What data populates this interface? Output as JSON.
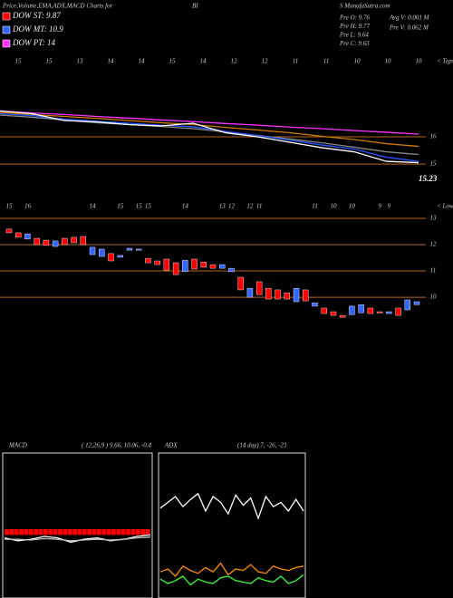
{
  "header": {
    "title": "Price,Volume,EMA,ADX,MACD Charts for",
    "symbol_part1": "BI",
    "symbol_part2": "S MunafaSutra.com"
  },
  "legend": [
    {
      "label": "DOW ST: 9.87",
      "color": "#ff0000"
    },
    {
      "label": "DOW MT: 10.9",
      "color": "#3366ff"
    },
    {
      "label": "DOW PT: 14",
      "color": "#ff33ff"
    }
  ],
  "quote": [
    "Pre  O: 9.76",
    "Pre  H: 9.77",
    "Pre  L: 9.64",
    "Pre  C: 9.63"
  ],
  "volume": [
    "Avg V: 0.001 M",
    "Pre  V: 0.062 M"
  ],
  "chart_data": [
    {
      "type": "line",
      "categories": [
        "15",
        "15",
        "13",
        "14",
        "14",
        "15",
        "14",
        "12",
        "12",
        "11",
        "11",
        "10",
        "10",
        "10"
      ],
      "corner_label": "< Tops",
      "last_price": "15.23",
      "ylim": [
        13.87,
        17.2
      ],
      "yticks": [
        16,
        15
      ],
      "grid": true,
      "grid_color": "#b5651d",
      "series": [
        {
          "color": "#ff33ff",
          "values": [
            16.95,
            16.88,
            16.82,
            16.75,
            16.69,
            16.62,
            16.56,
            16.49,
            16.43,
            16.36,
            16.3,
            16.23,
            16.17,
            16.1
          ]
        },
        {
          "color": "#cc7a00",
          "values": [
            16.9,
            16.82,
            16.75,
            16.68,
            16.6,
            16.52,
            16.45,
            16.35,
            16.25,
            16.15,
            16.02,
            15.9,
            15.75,
            15.65
          ]
        },
        {
          "color": "#888888",
          "values": [
            16.8,
            16.72,
            16.62,
            16.52,
            16.45,
            16.38,
            16.3,
            16.18,
            16.05,
            15.92,
            15.78,
            15.62,
            15.45,
            15.35
          ]
        },
        {
          "color": "#2255ff",
          "values": [
            16.85,
            16.78,
            16.65,
            16.57,
            16.5,
            16.43,
            16.37,
            16.2,
            16.05,
            15.88,
            15.7,
            15.55,
            15.25,
            15.1
          ]
        },
        {
          "color": "#ffffff",
          "values": [
            16.95,
            16.85,
            16.6,
            16.55,
            16.45,
            16.4,
            16.5,
            16.15,
            16.0,
            15.8,
            15.6,
            15.45,
            15.1,
            15.05
          ]
        }
      ]
    },
    {
      "type": "candlestick",
      "categories": [
        "15",
        null,
        "16",
        null,
        null,
        null,
        null,
        null,
        null,
        "14",
        null,
        null,
        "15",
        null,
        "15",
        "15",
        null,
        null,
        null,
        "14",
        null,
        null,
        null,
        "13",
        "12",
        null,
        "12",
        "11",
        null,
        null,
        null,
        null,
        null,
        "11",
        null,
        "10",
        null,
        "10",
        null,
        null,
        "9",
        "9",
        null,
        null,
        null
      ],
      "corner_label": "< Lower",
      "ylim": [
        8.9,
        13.55
      ],
      "yticks": [
        13,
        12,
        11,
        10
      ],
      "grid": true,
      "grid_color": "#b5651d",
      "up_color": "#3366ff",
      "down_color": "#ff0000",
      "open": [
        12.59,
        12.45,
        12.21,
        12.24,
        12.17,
        11.93,
        12.24,
        12.28,
        12.31,
        11.62,
        11.55,
        11.66,
        11.52,
        11.79,
        11.79,
        11.48,
        11.38,
        11.45,
        11.31,
        10.97,
        11.45,
        11.34,
        11.24,
        11.1,
        10.97,
        10.76,
        10.0,
        10.59,
        10.34,
        10.28,
        10.17,
        9.83,
        10.28,
        9.66,
        9.59,
        9.45,
        9.31,
        9.34,
        9.41,
        9.59,
        9.45,
        9.38,
        9.59,
        9.52,
        9.72
      ],
      "close": [
        12.45,
        12.28,
        12.41,
        12.0,
        11.97,
        12.14,
        12.0,
        12.07,
        12.0,
        11.9,
        11.83,
        11.38,
        11.59,
        11.86,
        11.83,
        11.31,
        11.24,
        11.03,
        10.86,
        11.41,
        11.07,
        11.14,
        11.1,
        11.24,
        11.1,
        10.28,
        10.34,
        10.1,
        9.93,
        9.93,
        9.93,
        10.34,
        9.86,
        9.79,
        9.38,
        9.31,
        9.24,
        9.66,
        9.72,
        9.38,
        9.4,
        9.45,
        9.31,
        9.9,
        9.83
      ]
    },
    {
      "type": "line",
      "label": "MACD",
      "params": "( 12,26,9 ) 9.66, 10.06, -0.4",
      "ylim": [
        -4.75,
        5.25
      ],
      "histogram": {
        "color": "#ff0000",
        "values": [
          -0.4,
          -0.4,
          -0.4,
          -0.4,
          -0.4,
          -0.4,
          -0.4,
          -0.4,
          -0.4,
          -0.4,
          -0.4,
          -0.4,
          -0.4,
          -0.4,
          -0.4,
          -0.4,
          -0.4,
          -0.4,
          -0.4,
          -0.4,
          -0.4,
          -0.4,
          -0.4,
          -0.4,
          -0.4,
          -0.4,
          -0.4,
          -0.4,
          -0.4,
          -0.4
        ]
      },
      "series": [
        {
          "color": "#ffffff",
          "values": [
            -0.6,
            -0.8,
            -0.7,
            -0.5,
            -0.6,
            -0.9,
            -0.7,
            -0.6,
            -0.8,
            -0.7,
            -0.5,
            -0.4
          ]
        },
        {
          "color": "#bbbbbb",
          "values": [
            -0.7,
            -0.7,
            -0.75,
            -0.65,
            -0.7,
            -0.8,
            -0.75,
            -0.7,
            -0.75,
            -0.7,
            -0.6,
            -0.55
          ]
        }
      ]
    },
    {
      "type": "line",
      "label": "ADX",
      "params": "(14 day) 7, -26, -23",
      "ylim": [
        0,
        100
      ],
      "series": [
        {
          "color": "#ffffff",
          "values": [
            62,
            66,
            70,
            63,
            68,
            72,
            60,
            70,
            66,
            58,
            71,
            64,
            69,
            55,
            70,
            63,
            66,
            60,
            68,
            60
          ]
        },
        {
          "color": "#ff8c00",
          "values": [
            18,
            20,
            15,
            22,
            19,
            17,
            21,
            18,
            24,
            16,
            20,
            19,
            23,
            18,
            17,
            22,
            20,
            19,
            21,
            22
          ]
        },
        {
          "color": "#33ff33",
          "values": [
            13,
            10,
            12,
            15,
            9,
            13,
            11,
            10,
            14,
            15,
            12,
            11,
            10,
            14,
            12,
            11,
            15,
            10,
            12,
            16
          ]
        }
      ]
    }
  ]
}
